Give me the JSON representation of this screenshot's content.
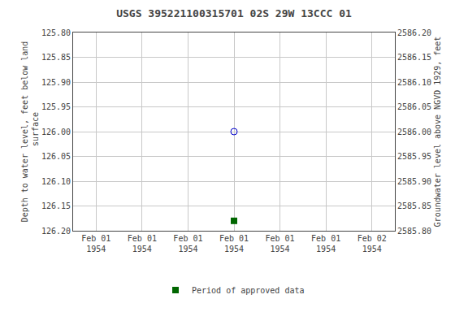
{
  "chart_data": {
    "type": "scatter",
    "title": "USGS 395221100315701 02S 29W 13CCC 01",
    "y_label": "Depth to water level, feet below land\n surface",
    "y2_label": "Groundwater level above NGVD 1929, feet",
    "categories": [
      "Feb 01\n1954",
      "Feb 01\n1954",
      "Feb 01\n1954",
      "Feb 01\n1954",
      "Feb 01\n1954",
      "Feb 01\n1954",
      "Feb 02\n1954"
    ],
    "series": [
      {
        "color": "#0000cc",
        "marker": "circle-open",
        "values": [
          null,
          null,
          null,
          126.0,
          null,
          null,
          null
        ]
      },
      {
        "name": "Period of approved data",
        "color": "#006600",
        "marker": "square",
        "values": [
          null,
          null,
          null,
          126.18,
          null,
          null,
          null
        ]
      }
    ],
    "ylim": [
      126.2,
      125.8
    ],
    "yticks": [
      {
        "value": 125.8,
        "label": "125.80"
      },
      125.85,
      {
        "value": 125.9,
        "label": "125.90"
      },
      125.95,
      {
        "value": 126.0,
        "label": "126.00"
      },
      126.05,
      {
        "value": 126.1,
        "label": "126.10"
      },
      126.15,
      {
        "value": 126.2,
        "label": "126.20"
      }
    ],
    "y2lim": [
      2585.8,
      2586.2
    ],
    "y2ticks": [
      {
        "value": 2585.8,
        "label": "2585.80"
      },
      2585.85,
      {
        "value": 2585.9,
        "label": "2585.90"
      },
      2585.95,
      {
        "value": 2586.0,
        "label": "2586.00"
      },
      2586.05,
      {
        "value": 2586.1,
        "label": "2586.10"
      },
      2586.15,
      {
        "value": 2586.2,
        "label": "2586.20"
      }
    ],
    "grid": true,
    "legend": "bottom",
    "background_color": "#ffffff",
    "grid_color": "#c8c8c8"
  }
}
